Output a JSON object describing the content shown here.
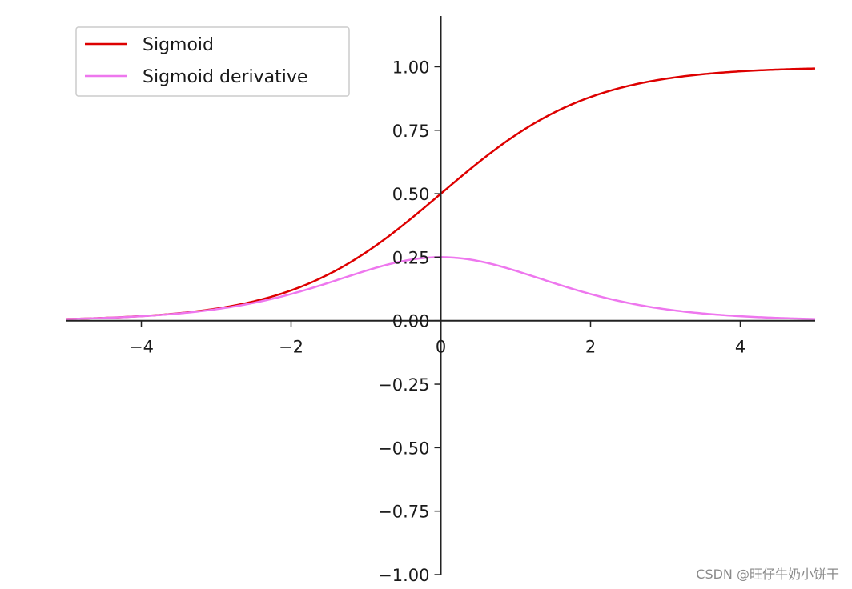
{
  "chart_data": {
    "type": "line",
    "xlim": [
      -5,
      5
    ],
    "ylim": [
      -1.0,
      1.2
    ],
    "x_ticks": [
      -4,
      -2,
      0,
      2,
      4
    ],
    "x_tick_labels": [
      "−4",
      "−2",
      "0",
      "2",
      "4"
    ],
    "y_ticks": [
      -1.0,
      -0.75,
      -0.5,
      -0.25,
      0.0,
      0.25,
      0.5,
      0.75,
      1.0
    ],
    "y_tick_labels": [
      "−1.00",
      "−0.75",
      "−0.50",
      "−0.25",
      "0.00",
      "0.25",
      "0.50",
      "0.75",
      "1.00"
    ],
    "grid": false,
    "spines": "centered",
    "legend": {
      "placement": "upper-left"
    },
    "x": [
      -5,
      -4.5,
      -4,
      -3.5,
      -3,
      -2.5,
      -2,
      -1.5,
      -1,
      -0.5,
      0,
      0.5,
      1,
      1.5,
      2,
      2.5,
      3,
      3.5,
      4,
      4.5,
      5
    ],
    "series": [
      {
        "name": "Sigmoid",
        "color": "#dd0000",
        "values": [
          0.0067,
          0.011,
          0.018,
          0.0293,
          0.0474,
          0.0759,
          0.1192,
          0.1824,
          0.2689,
          0.3775,
          0.5,
          0.6225,
          0.7311,
          0.8176,
          0.8808,
          0.9241,
          0.9526,
          0.9707,
          0.982,
          0.989,
          0.9933
        ]
      },
      {
        "name": "Sigmoid derivative",
        "color": "#ee77ee",
        "values": [
          0.0066,
          0.0109,
          0.0177,
          0.0285,
          0.0452,
          0.0701,
          0.105,
          0.1491,
          0.1966,
          0.235,
          0.25,
          0.235,
          0.1966,
          0.1491,
          0.105,
          0.0701,
          0.0452,
          0.0285,
          0.0177,
          0.0109,
          0.0066
        ]
      }
    ]
  },
  "watermark": "CSDN @旺仔牛奶小饼干"
}
